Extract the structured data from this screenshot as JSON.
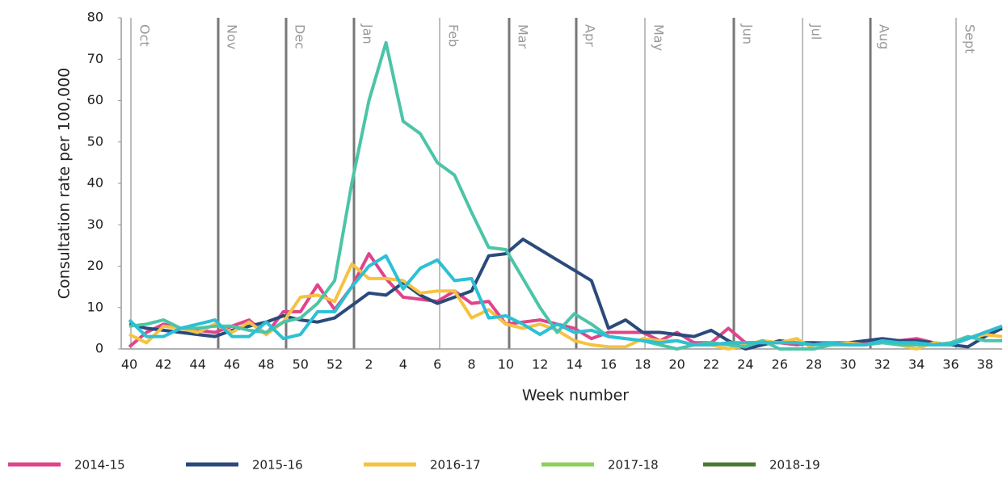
{
  "chart_data": {
    "type": "line",
    "x_label": "Week number",
    "y_label": "Consultation rate per 100,000",
    "categories": [
      "40",
      null,
      "42",
      null,
      "44",
      null,
      "46",
      null,
      "48",
      null,
      "50",
      null,
      "52",
      null,
      "2",
      null,
      "4",
      null,
      "6",
      null,
      "8",
      null,
      "10",
      null,
      "12",
      null,
      "14",
      null,
      "16",
      null,
      "18",
      null,
      "20",
      null,
      "22",
      null,
      "24",
      null,
      "26",
      null,
      "28",
      null,
      "30",
      null,
      "32",
      null,
      "34",
      null,
      "36",
      null,
      "38",
      null
    ],
    "month_labels": [
      "Oct",
      "Nov",
      "Dec",
      "Jan",
      "Feb",
      "Mar",
      "Apr",
      "May",
      "Jun",
      "Jul",
      "Aug",
      "Sept"
    ],
    "ylim": [
      0,
      80
    ],
    "yticks": [
      0,
      10,
      20,
      30,
      40,
      50,
      60,
      70,
      80
    ],
    "legend": {
      "position": "bottom",
      "colors": [
        "#e0448a",
        "#2b4a7b",
        "#f6c242",
        "#8ccf5a",
        "#4a7a32"
      ]
    },
    "series": [
      {
        "name": "2014-15",
        "color": "#e0448a",
        "values": [
          0.5,
          4,
          6,
          5,
          4.5,
          4,
          5.5,
          7,
          3.5,
          9,
          9,
          15.5,
          9.5,
          15,
          23,
          17,
          12.5,
          12,
          11.5,
          14,
          11,
          11.5,
          6,
          6.5,
          7,
          6,
          5,
          2.5,
          4,
          4,
          4,
          2,
          4,
          1.5,
          1.5,
          5,
          1.5,
          1.5,
          1.5,
          1,
          1.5,
          1.5,
          1.5,
          1.5,
          2,
          2,
          2.5,
          1.5,
          1,
          2.5,
          4,
          5.5
        ]
      },
      {
        "name": "2015-16",
        "color": "#2b4a7b",
        "values": [
          6,
          5,
          4.5,
          4,
          3.5,
          3,
          4.5,
          5.5,
          6.5,
          8,
          7,
          6.5,
          7.5,
          10.5,
          13.5,
          13,
          16,
          13,
          11,
          12.5,
          14,
          22.5,
          23,
          26.5,
          24,
          21.5,
          19,
          16.5,
          5,
          7,
          4,
          4,
          3.5,
          3,
          4.5,
          2,
          0,
          1,
          2,
          1.5,
          1.5,
          1,
          1.5,
          2,
          2.5,
          2,
          2,
          1.5,
          1,
          0.5,
          3,
          5
        ]
      },
      {
        "name": "2016-17",
        "color": "#f6c242",
        "values": [
          3.5,
          1.5,
          5.5,
          5,
          4,
          6,
          4,
          6.5,
          3.5,
          6.5,
          12.5,
          13,
          11.5,
          20.5,
          17,
          17,
          16.5,
          13.5,
          14,
          14,
          7.5,
          9.5,
          6,
          5,
          6,
          4.5,
          2,
          1,
          0.5,
          0.5,
          2.5,
          2,
          2,
          1,
          1,
          0,
          1,
          2,
          1.5,
          2.5,
          0,
          1,
          1.5,
          1,
          1.5,
          1,
          0,
          1.5,
          1,
          2.5,
          3.5,
          3
        ]
      },
      {
        "name": "2017-18",
        "color": "#4cc4a8",
        "values": [
          5.5,
          6,
          7,
          5,
          5,
          5.5,
          5.5,
          4.5,
          4,
          6.5,
          7.5,
          11,
          16.5,
          40,
          60,
          74,
          55,
          52,
          45,
          42,
          33,
          24.5,
          24,
          17,
          10,
          4,
          8.5,
          6,
          3,
          2.5,
          2,
          1,
          0,
          1,
          1.5,
          1,
          0.5,
          2,
          0,
          0,
          0,
          1,
          1,
          1,
          1.5,
          1,
          1,
          1,
          1.5,
          3,
          2,
          2
        ]
      },
      {
        "name": "2018-19",
        "color": "#2cc0d4",
        "values": [
          7,
          3,
          3,
          5,
          6,
          7,
          3,
          3,
          6.5,
          2.5,
          3.5,
          9,
          9,
          15,
          20,
          22.5,
          14.5,
          19.5,
          21.5,
          16.5,
          17,
          7.5,
          8,
          6,
          3.5,
          6,
          4,
          4.5,
          3,
          2.5,
          2,
          1.5,
          2,
          1,
          1,
          1.5,
          1.5,
          1.5,
          1.5,
          1.5,
          1,
          1.5,
          1,
          1,
          2,
          1.5,
          1.5,
          1,
          1,
          2.5,
          4,
          5.5
        ]
      }
    ]
  }
}
